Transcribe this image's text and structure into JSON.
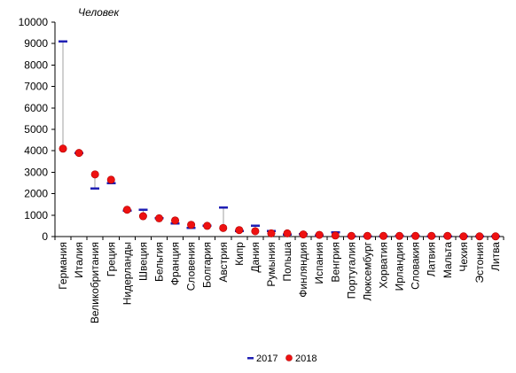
{
  "chart_data": {
    "type": "scatter",
    "unit_label": "Человек",
    "ylim": [
      0,
      10000
    ],
    "yticks": [
      0,
      1000,
      2000,
      3000,
      4000,
      5000,
      6000,
      7000,
      8000,
      9000,
      10000
    ],
    "grid": false,
    "legend_position": "bottom",
    "categories": [
      "Германия",
      "Италия",
      "Великобритания",
      "Греция",
      "Нидерланды",
      "Швеция",
      "Бельгия",
      "Франция",
      "Словения",
      "Болгария",
      "Австрия",
      "Кипр",
      "Дания",
      "Румыния",
      "Польша",
      "Финляндия",
      "Испания",
      "Венгрия",
      "Португалия",
      "Люксембург",
      "Хорватия",
      "Ирландия",
      "Словакия",
      "Латвия",
      "Мальта",
      "Чехия",
      "Эстония",
      "Литва"
    ],
    "series": [
      {
        "name": "2017",
        "marker": "dash",
        "color": "#1f1fb4",
        "values": [
          9100,
          3900,
          2250,
          2500,
          1200,
          1250,
          850,
          600,
          400,
          500,
          1350,
          250,
          500,
          250,
          100,
          120,
          50,
          200,
          20,
          20,
          20,
          30,
          30,
          20,
          10,
          10,
          10,
          10
        ]
      },
      {
        "name": "2018",
        "marker": "circle",
        "color": "#ee1111",
        "values": [
          4100,
          3900,
          2900,
          2650,
          1250,
          950,
          850,
          750,
          550,
          500,
          400,
          300,
          250,
          150,
          150,
          100,
          80,
          50,
          30,
          30,
          30,
          30,
          30,
          30,
          30,
          10,
          10,
          10
        ]
      }
    ]
  }
}
